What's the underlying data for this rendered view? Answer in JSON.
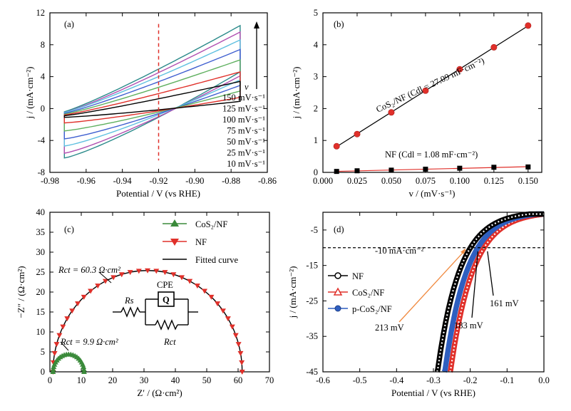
{
  "chart_data": [
    {
      "panel": "(a)",
      "type": "line",
      "xlabel": "Potential / V (vs RHE)",
      "ylabel": "j / (mA·cm⁻²)",
      "xlim": [
        -0.98,
        -0.86
      ],
      "ylim": [
        -8,
        12
      ],
      "xticks": [
        "-0.98",
        "-0.96",
        "-0.94",
        "-0.92",
        "-0.90",
        "-0.88",
        "-0.86"
      ],
      "yticks": [
        "-8",
        "-4",
        "0",
        "4",
        "8",
        "12"
      ],
      "marker_x": -0.92,
      "arrow_label": "v",
      "series": [
        {
          "name": "150 mV·s⁻¹",
          "color": "#2a8a8a",
          "top_start": -0.4,
          "top_end": 10.4,
          "bottom_start": -6.2,
          "bottom_end": 4.6
        },
        {
          "name": "125 mV·s⁻¹",
          "color": "#b04fb0",
          "top_start": -0.5,
          "top_end": 9.6,
          "bottom_start": -5.6,
          "bottom_end": 4.1
        },
        {
          "name": "100 mV·s⁻¹",
          "color": "#5fc0e0",
          "top_start": -0.5,
          "top_end": 8.6,
          "bottom_start": -4.7,
          "bottom_end": 3.6
        },
        {
          "name": "75 mV·s⁻¹",
          "color": "#3f5fd0",
          "top_start": -0.6,
          "top_end": 7.4,
          "bottom_start": -3.8,
          "bottom_end": 2.9
        },
        {
          "name": "50 mV·s⁻¹",
          "color": "#5fb05f",
          "top_start": -0.7,
          "top_end": 6.1,
          "bottom_start": -2.8,
          "bottom_end": 2.2
        },
        {
          "name": "25 mV·s⁻¹",
          "color": "#e0302a",
          "top_start": -0.8,
          "top_end": 4.6,
          "bottom_start": -1.8,
          "bottom_end": 1.4
        },
        {
          "name": "10 mV·s⁻¹",
          "color": "#000000",
          "top_start": -0.9,
          "top_end": 3.4,
          "bottom_start": -1.1,
          "bottom_end": 0.9
        }
      ]
    },
    {
      "panel": "(b)",
      "type": "scatter",
      "xlabel": "v / (mV·s⁻¹)",
      "ylabel": "j / (mA·cm⁻²)",
      "xlim": [
        0.0,
        0.16
      ],
      "ylim": [
        0,
        5
      ],
      "xticks": [
        "0.000",
        "0.025",
        "0.050",
        "0.075",
        "0.100",
        "0.125",
        "0.150"
      ],
      "yticks": [
        "0",
        "1",
        "2",
        "3",
        "4",
        "5"
      ],
      "x": [
        0.01,
        0.025,
        0.05,
        0.075,
        0.1,
        0.125,
        0.15
      ],
      "series": [
        {
          "name": "CoS₂/NF (Cdl = 27.09 mF·cm⁻²)",
          "color": "#e0302a",
          "marker": "circle",
          "values": [
            0.82,
            1.2,
            1.88,
            2.56,
            3.23,
            3.92,
            4.6
          ]
        },
        {
          "name": "NF (Cdl = 1.08 mF·cm⁻²)",
          "color": "#000000",
          "marker": "square",
          "values": [
            0.03,
            0.05,
            0.07,
            0.1,
            0.13,
            0.16,
            0.17
          ]
        }
      ]
    },
    {
      "panel": "(c)",
      "type": "scatter",
      "xlabel": "Z′ / (Ω·cm²)",
      "ylabel": "−Z″ / (Ω·cm²)",
      "xlim": [
        0,
        70
      ],
      "ylim": [
        0,
        40
      ],
      "xticks": [
        "0",
        "10",
        "20",
        "30",
        "40",
        "50",
        "60",
        "70"
      ],
      "yticks": [
        "0",
        "5",
        "10",
        "15",
        "20",
        "25",
        "30",
        "35",
        "40"
      ],
      "legend": [
        {
          "name": "CoS₂/NF",
          "color": "#3a8a3a",
          "marker": "triangle-up"
        },
        {
          "name": "NF",
          "color": "#e0302a",
          "marker": "triangle-down"
        },
        {
          "name": "Fitted curve",
          "color": "#000000",
          "marker": "line"
        }
      ],
      "series": [
        {
          "name": "NF",
          "Rs": 1.0,
          "Rct": 60.3,
          "peak": 25.4,
          "color": "#e0302a"
        },
        {
          "name": "CoS₂/NF",
          "Rs": 1.0,
          "Rct": 9.9,
          "peak": 4.4,
          "color": "#3a8a3a"
        }
      ],
      "annotations": {
        "nf_rct": "Rct = 60.3 Ω·cm²",
        "cos2_rct": "Rct = 9.9 Ω·cm²",
        "circuit_rs": "Rs",
        "circuit_cpe": "CPE",
        "circuit_q": "Q",
        "circuit_rct": "Rct"
      }
    },
    {
      "panel": "(d)",
      "type": "line",
      "xlabel": "Potential / V (vs RHE)",
      "ylabel": "j / (mA·cm⁻²)",
      "xlim": [
        -0.6,
        0.0
      ],
      "ylim": [
        -45,
        0
      ],
      "xticks": [
        "-0.6",
        "-0.5",
        "-0.4",
        "-0.3",
        "-0.2",
        "-0.1",
        "0.0"
      ],
      "yticks": [
        "-5",
        "-15",
        "-25",
        "-35",
        "-45"
      ],
      "reference_line": {
        "y": -10,
        "label": "-10 mA·cm⁻²"
      },
      "series": [
        {
          "name": "NF",
          "color": "#000000",
          "marker": "circle-open",
          "overpotential_mV": 213,
          "onset": -0.06,
          "x_at_minus45": -0.29
        },
        {
          "name": "CoS₂/NF",
          "color": "#e0302a",
          "marker": "triangle-open",
          "overpotential_mV": 161,
          "onset": -0.02,
          "x_at_minus45": -0.255
        },
        {
          "name": "p-CoS₂/NF",
          "color": "#2f5fc0",
          "marker": "circle-filled",
          "overpotential_mV": 183,
          "onset": -0.04,
          "x_at_minus45": -0.27
        }
      ],
      "annotations": {
        "nf": "213 mV",
        "cos2": "161 mV",
        "pcos2": "183 mV"
      }
    }
  ]
}
